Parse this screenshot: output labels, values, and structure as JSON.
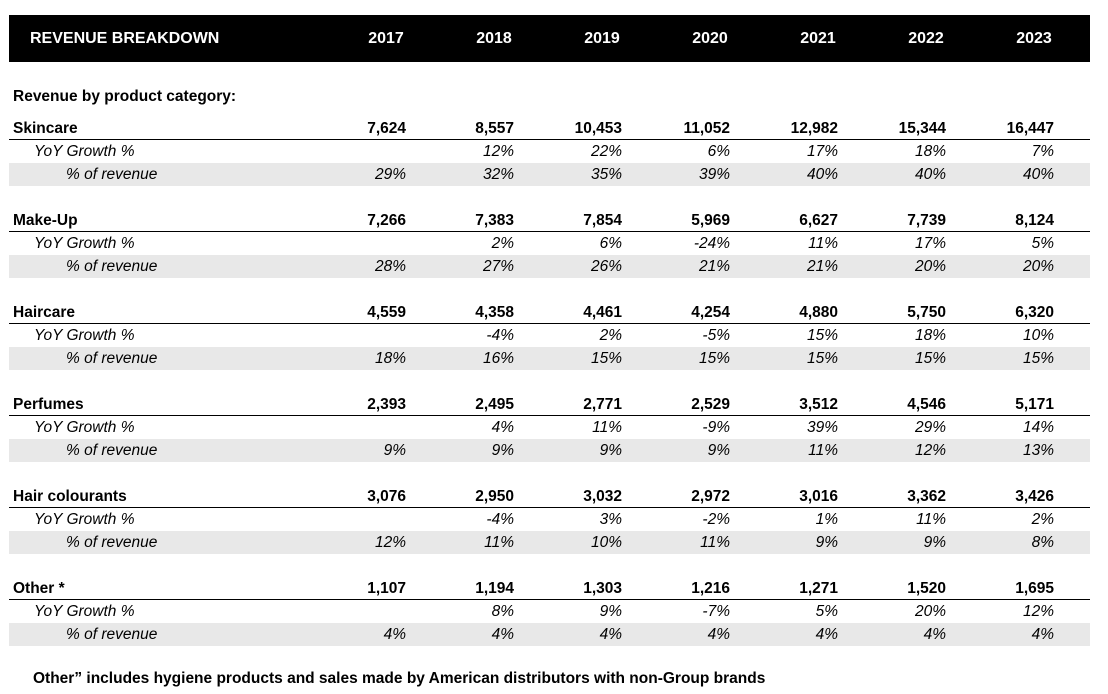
{
  "header": {
    "title": "REVENUE BREAKDOWN",
    "years": [
      "2017",
      "2018",
      "2019",
      "2020",
      "2021",
      "2022",
      "2023"
    ]
  },
  "section_title": "Revenue by product category:",
  "categories": [
    {
      "name": "Skincare",
      "values": [
        "7,624",
        "8,557",
        "10,453",
        "11,052",
        "12,982",
        "15,344",
        "16,447"
      ],
      "yoy_label": "YoY Growth %",
      "yoy": [
        "",
        "12%",
        "22%",
        "6%",
        "17%",
        "18%",
        "7%"
      ],
      "pct_label": "% of revenue",
      "pct": [
        "29%",
        "32%",
        "35%",
        "39%",
        "40%",
        "40%",
        "40%"
      ]
    },
    {
      "name": "Make-Up",
      "values": [
        "7,266",
        "7,383",
        "7,854",
        "5,969",
        "6,627",
        "7,739",
        "8,124"
      ],
      "yoy_label": "YoY Growth %",
      "yoy": [
        "",
        "2%",
        "6%",
        "-24%",
        "11%",
        "17%",
        "5%"
      ],
      "pct_label": "% of revenue",
      "pct": [
        "28%",
        "27%",
        "26%",
        "21%",
        "21%",
        "20%",
        "20%"
      ]
    },
    {
      "name": "Haircare",
      "values": [
        "4,559",
        "4,358",
        "4,461",
        "4,254",
        "4,880",
        "5,750",
        "6,320"
      ],
      "yoy_label": "YoY Growth %",
      "yoy": [
        "",
        "-4%",
        "2%",
        "-5%",
        "15%",
        "18%",
        "10%"
      ],
      "pct_label": "% of revenue",
      "pct": [
        "18%",
        "16%",
        "15%",
        "15%",
        "15%",
        "15%",
        "15%"
      ]
    },
    {
      "name": "Perfumes",
      "values": [
        "2,393",
        "2,495",
        "2,771",
        "2,529",
        "3,512",
        "4,546",
        "5,171"
      ],
      "yoy_label": "YoY Growth %",
      "yoy": [
        "",
        "4%",
        "11%",
        "-9%",
        "39%",
        "29%",
        "14%"
      ],
      "pct_label": "% of revenue",
      "pct": [
        "9%",
        "9%",
        "9%",
        "9%",
        "11%",
        "12%",
        "13%"
      ]
    },
    {
      "name": "Hair colourants",
      "values": [
        "3,076",
        "2,950",
        "3,032",
        "2,972",
        "3,016",
        "3,362",
        "3,426"
      ],
      "yoy_label": "YoY Growth %",
      "yoy": [
        "",
        "-4%",
        "3%",
        "-2%",
        "1%",
        "11%",
        "2%"
      ],
      "pct_label": "% of revenue",
      "pct": [
        "12%",
        "11%",
        "10%",
        "11%",
        "9%",
        "9%",
        "8%"
      ]
    },
    {
      "name": "Other *",
      "values": [
        "1,107",
        "1,194",
        "1,303",
        "1,216",
        "1,271",
        "1,520",
        "1,695"
      ],
      "yoy_label": "YoY Growth %",
      "yoy": [
        "",
        "8%",
        "9%",
        "-7%",
        "5%",
        "20%",
        "12%"
      ],
      "pct_label": "% of revenue",
      "pct": [
        "4%",
        "4%",
        "4%",
        "4%",
        "4%",
        "4%",
        "4%"
      ]
    }
  ],
  "footnote": "Other” includes hygiene products and sales made by American distributors with non-Group brands"
}
